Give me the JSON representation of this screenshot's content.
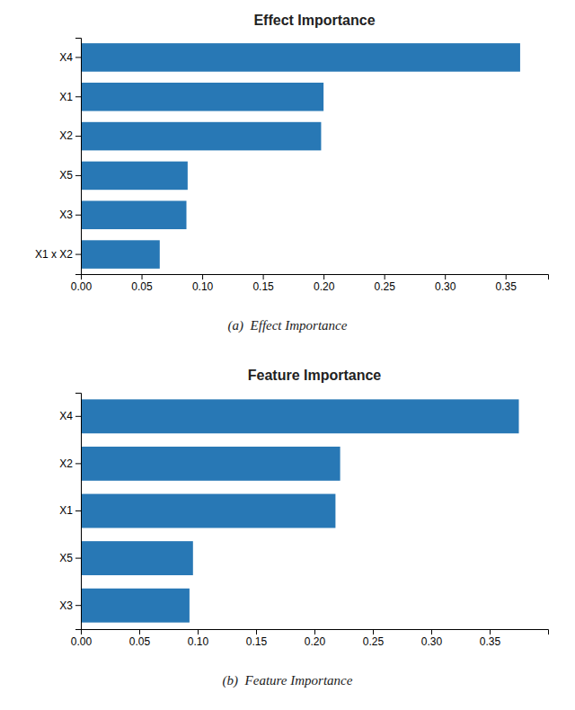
{
  "chart_data": [
    {
      "type": "bar",
      "orientation": "horizontal",
      "title": "Effect Importance",
      "categories": [
        "X4",
        "X1",
        "X2",
        "X5",
        "X3",
        "X1 x X2"
      ],
      "values": [
        0.362,
        0.2,
        0.198,
        0.088,
        0.087,
        0.065
      ],
      "color": "#2878b5",
      "xlim": [
        0,
        0.385
      ],
      "xticks": [
        {
          "value": 0.0,
          "label": "0.00"
        },
        {
          "value": 0.05,
          "label": "0.05"
        },
        {
          "value": 0.1,
          "label": "0.10"
        },
        {
          "value": 0.15,
          "label": "0.15"
        },
        {
          "value": 0.2,
          "label": "0.20"
        },
        {
          "value": 0.25,
          "label": "0.25"
        },
        {
          "value": 0.3,
          "label": "0.30"
        },
        {
          "value": 0.35,
          "label": "0.35"
        }
      ],
      "grid": false,
      "caption": "(a)  Effect Importance"
    },
    {
      "type": "bar",
      "orientation": "horizontal",
      "title": "Feature Importance",
      "categories": [
        "X4",
        "X2",
        "X1",
        "X5",
        "X3"
      ],
      "values": [
        0.375,
        0.222,
        0.218,
        0.096,
        0.093
      ],
      "color": "#2878b5",
      "xlim": [
        0,
        0.4
      ],
      "xticks": [
        {
          "value": 0.0,
          "label": "0.00"
        },
        {
          "value": 0.05,
          "label": "0.05"
        },
        {
          "value": 0.1,
          "label": "0.10"
        },
        {
          "value": 0.15,
          "label": "0.15"
        },
        {
          "value": 0.2,
          "label": "0.20"
        },
        {
          "value": 0.25,
          "label": "0.25"
        },
        {
          "value": 0.3,
          "label": "0.30"
        },
        {
          "value": 0.35,
          "label": "0.35"
        }
      ],
      "grid": false,
      "caption": "(b)  Feature Importance"
    }
  ]
}
